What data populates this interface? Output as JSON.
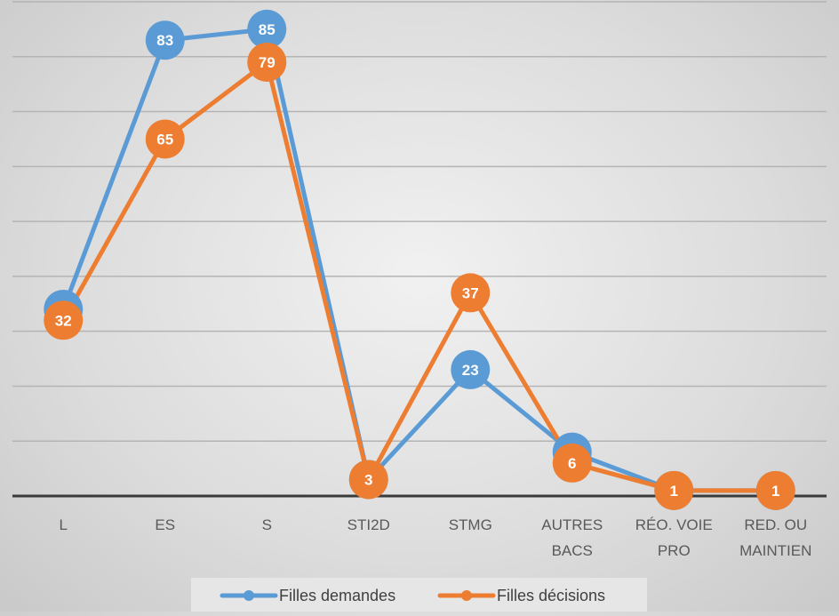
{
  "chart_data": {
    "type": "line",
    "title": "",
    "xlabel": "",
    "ylabel": "",
    "ylim": [
      0,
      90
    ],
    "grid": true,
    "legend_position": "bottom",
    "categories": [
      [
        "L"
      ],
      [
        "ES"
      ],
      [
        "S"
      ],
      [
        "STI2D"
      ],
      [
        "STMG"
      ],
      [
        "AUTRES",
        "BACS"
      ],
      [
        "RÉO. VOIE",
        "PRO"
      ],
      [
        "RED. OU",
        "MAINTIEN"
      ]
    ],
    "series": [
      {
        "name": "Filles demandes",
        "color": "#5b9bd5",
        "values": [
          34,
          83,
          85,
          3,
          23,
          8,
          1,
          1
        ],
        "data_labels": [
          "34",
          "83",
          "85",
          "3",
          "23",
          "8",
          "1",
          "1"
        ]
      },
      {
        "name": "Filles décisions",
        "color": "#ed7d31",
        "values": [
          32,
          65,
          79,
          3,
          37,
          6,
          1,
          1
        ],
        "data_labels": [
          "32",
          "65",
          "79",
          "3",
          "37",
          "6",
          "1",
          "1"
        ]
      }
    ]
  }
}
